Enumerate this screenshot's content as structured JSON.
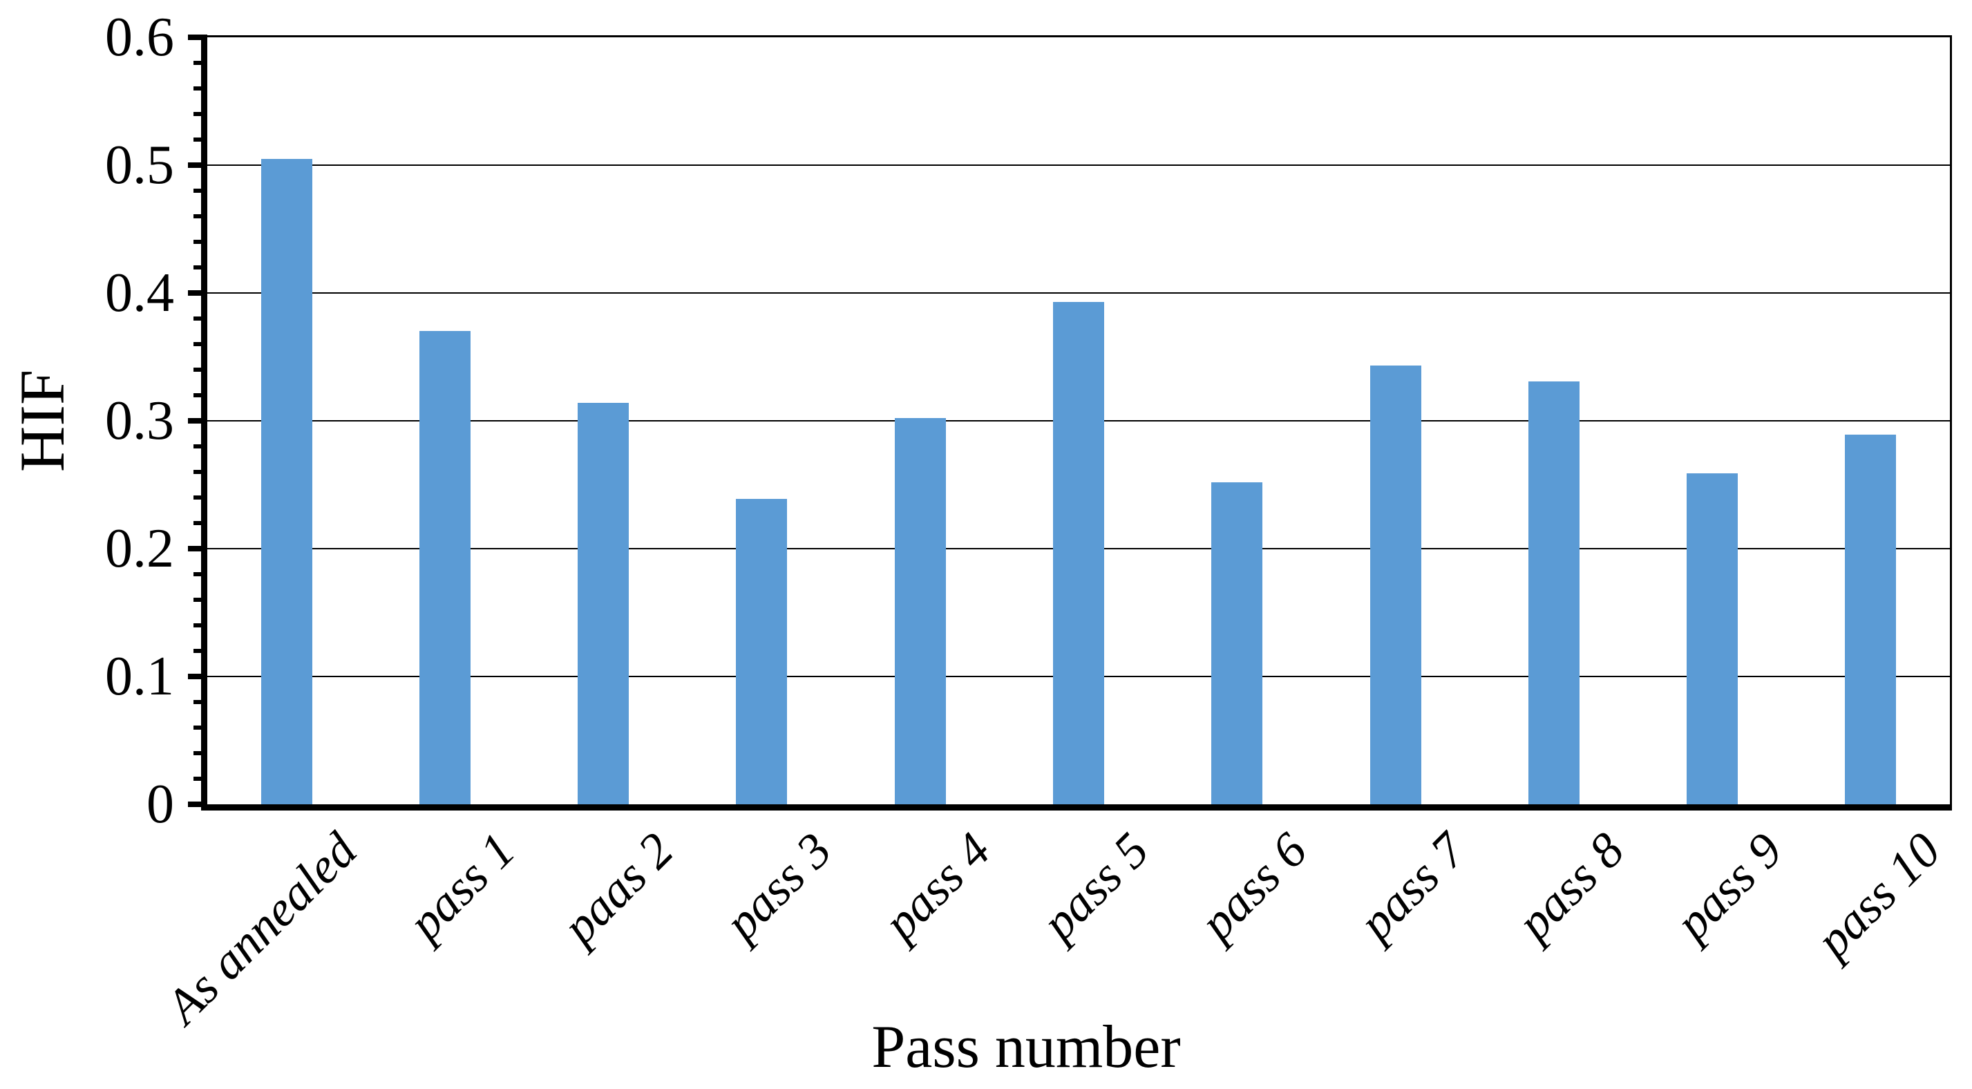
{
  "chart_data": {
    "type": "bar",
    "title": "",
    "xlabel": "Pass number",
    "ylabel": "HIF",
    "categories": [
      "As annealed",
      "pass 1",
      "paas 2",
      "pass 3",
      "pass 4",
      "pass 5",
      "pass 6",
      "pass 7",
      "pass 8",
      "pass 9",
      "pass 10"
    ],
    "values": [
      0.505,
      0.37,
      0.314,
      0.239,
      0.302,
      0.393,
      0.252,
      0.343,
      0.331,
      0.259,
      0.289
    ],
    "ylim": [
      0,
      0.6
    ],
    "ytick_labels": [
      "0",
      "0.1",
      "0.2",
      "0.3",
      "0.4",
      "0.5",
      "0.6"
    ],
    "ytick_major_step": 0.1,
    "ytick_minor_step": 0.02,
    "grid": true,
    "legend_position": "none",
    "bar_color": "#5B9BD5",
    "axis_color": "#000000",
    "gridline_color": "#000000",
    "xtick_label_rotation_deg": 45,
    "bar_width_fraction": 0.323
  }
}
